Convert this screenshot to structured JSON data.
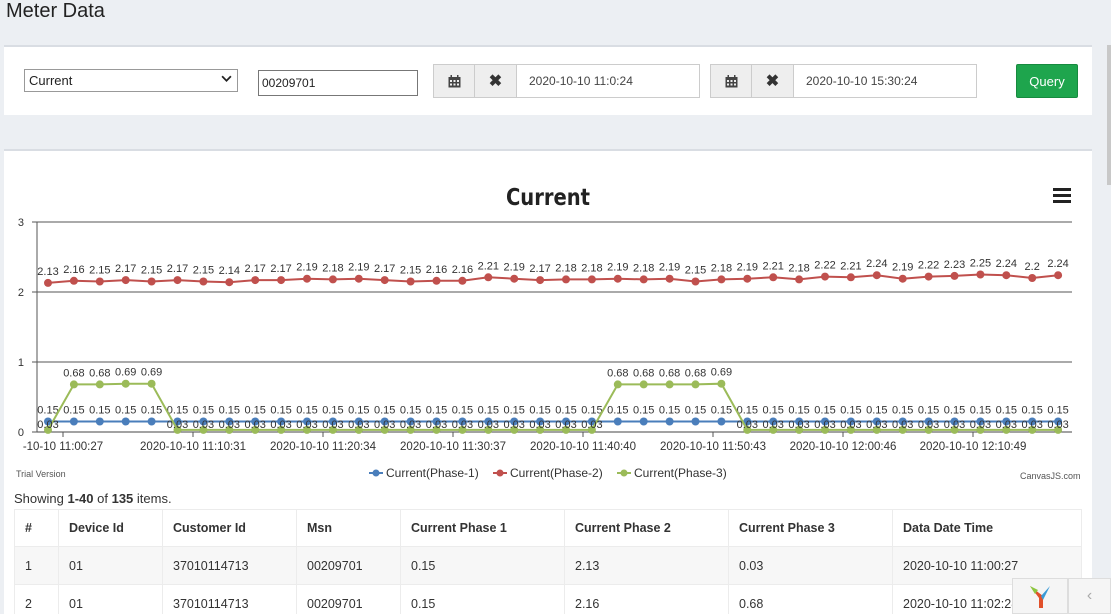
{
  "page": {
    "title": "Meter Data"
  },
  "filters": {
    "parameter": "Current",
    "msn": "00209701",
    "from_date": "2020-10-10 11:0:24",
    "to_date": "2020-10-10 15:30:24",
    "query_label": "Query",
    "calendar_icon": "calendar-icon",
    "clear_icon": "close-icon"
  },
  "chart_footer": {
    "trial": "Trial Version",
    "credit": "CanvasJS.com"
  },
  "chart_data": {
    "type": "line",
    "title": "Current",
    "ylim": [
      0,
      3
    ],
    "yticks": [
      0,
      1,
      2,
      3
    ],
    "xtick_labels": [
      "-10-10 11:00:27",
      "2020-10-10 11:10:31",
      "2020-10-10 11:20:34",
      "2020-10-10 11:30:37",
      "2020-10-10 11:40:40",
      "2020-10-10 11:50:43",
      "2020-10-10 12:00:46",
      "2020-10-10 12:10:49"
    ],
    "legend_position": "bottom-center",
    "series": [
      {
        "name": "Current(Phase-1)",
        "color": "#4a7ebb",
        "values": [
          0.15,
          0.15,
          0.15,
          0.15,
          0.15,
          0.15,
          0.15,
          0.15,
          0.15,
          0.15,
          0.15,
          0.15,
          0.15,
          0.15,
          0.15,
          0.15,
          0.15,
          0.15,
          0.15,
          0.15,
          0.15,
          0.15,
          0.15,
          0.15,
          0.15,
          0.15,
          0.15,
          0.15,
          0.15,
          0.15,
          0.15,
          0.15,
          0.15,
          0.15,
          0.15,
          0.15,
          0.15,
          0.15,
          0.15,
          0.15
        ]
      },
      {
        "name": "Current(Phase-2)",
        "color": "#c0504d",
        "values": [
          2.13,
          2.16,
          2.15,
          2.17,
          2.15,
          2.17,
          2.15,
          2.14,
          2.17,
          2.17,
          2.19,
          2.18,
          2.19,
          2.17,
          2.15,
          2.16,
          2.16,
          2.21,
          2.19,
          2.17,
          2.18,
          2.18,
          2.19,
          2.18,
          2.19,
          2.15,
          2.18,
          2.19,
          2.21,
          2.18,
          2.22,
          2.21,
          2.24,
          2.19,
          2.22,
          2.23,
          2.25,
          2.24,
          2.2,
          2.24
        ]
      },
      {
        "name": "Current(Phase-3)",
        "color": "#9bbb59",
        "values": [
          0.03,
          0.68,
          0.68,
          0.69,
          0.69,
          0.03,
          0.03,
          0.03,
          0.03,
          0.03,
          0.03,
          0.03,
          0.03,
          0.03,
          0.03,
          0.03,
          0.03,
          0.03,
          0.03,
          0.03,
          0.03,
          0.03,
          0.68,
          0.68,
          0.68,
          0.68,
          0.69,
          0.03,
          0.03,
          0.03,
          0.03,
          0.03,
          0.03,
          0.03,
          0.03,
          0.03,
          0.03,
          0.03,
          0.03,
          0.03
        ]
      }
    ]
  },
  "summary": {
    "prefix": "Showing ",
    "range": "1-40",
    "middle": " of ",
    "total": "135",
    "suffix": " items."
  },
  "table": {
    "headers": [
      "#",
      "Device Id",
      "Customer Id",
      "Msn",
      "Current Phase 1",
      "Current Phase 2",
      "Current Phase 3",
      "Data Date Time"
    ],
    "rows": [
      [
        "1",
        "01",
        "37010114713",
        "00209701",
        "0.15",
        "2.13",
        "0.03",
        "2020-10-10 11:00:27"
      ],
      [
        "2",
        "01",
        "37010114713",
        "00209701",
        "0.15",
        "2.16",
        "0.68",
        "2020-10-10 11:02:28"
      ]
    ]
  }
}
